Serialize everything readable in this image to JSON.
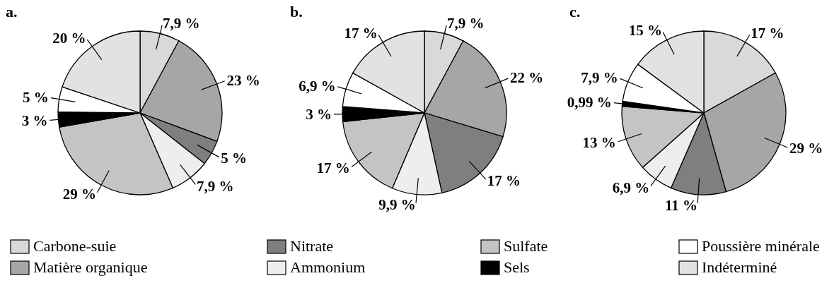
{
  "chart_data": [
    {
      "type": "pie",
      "title": "a.",
      "categories": [
        "Carbone-suie",
        "Matière organique",
        "Nitrate",
        "Ammonium",
        "Sulfate",
        "Sels",
        "Poussière minérale",
        "Indéterminé"
      ],
      "values": [
        7.9,
        23,
        5,
        7.9,
        29,
        3,
        5,
        20
      ],
      "value_labels": [
        "7,9 %",
        "23 %",
        "5 %",
        "7,9 %",
        "29 %",
        "3 %",
        "5 %",
        "20 %"
      ],
      "colors": [
        "#d9d9d9",
        "#a6a6a6",
        "#7f7f7f",
        "#eeeeee",
        "#c4c4c4",
        "#000000",
        "#ffffff",
        "#e2e2e2"
      ],
      "legend": "bottom"
    },
    {
      "type": "pie",
      "title": "b.",
      "categories": [
        null,
        null,
        null,
        null,
        null,
        null,
        null,
        null
      ],
      "values": [
        7.9,
        22,
        17,
        9.9,
        17,
        3,
        6.9,
        17
      ],
      "value_labels": [
        "7,9 %",
        "22 %",
        "17 %",
        "9,9 %",
        "17 %",
        "3 %",
        "6,9 %",
        "17 %"
      ],
      "colors": [
        "#d9d9d9",
        "#a6a6a6",
        "#7f7f7f",
        "#eeeeee",
        "#c4c4c4",
        "#000000",
        "#ffffff",
        "#e2e2e2"
      ]
    },
    {
      "type": "pie",
      "title": "c.",
      "categories": [
        null,
        null,
        null,
        null,
        null,
        null,
        null,
        null
      ],
      "values": [
        17,
        29,
        11,
        6.9,
        13,
        0.99,
        7.9,
        15
      ],
      "value_labels": [
        "17 %",
        "29 %",
        "11 %",
        "6,9 %",
        "13 %",
        "0,99 %",
        "7,9 %",
        "15 %"
      ],
      "colors": [
        "#d9d9d9",
        "#a6a6a6",
        "#7f7f7f",
        "#eeeeee",
        "#c4c4c4",
        "#000000",
        "#ffffff",
        "#e2e2e2"
      ]
    }
  ]
}
